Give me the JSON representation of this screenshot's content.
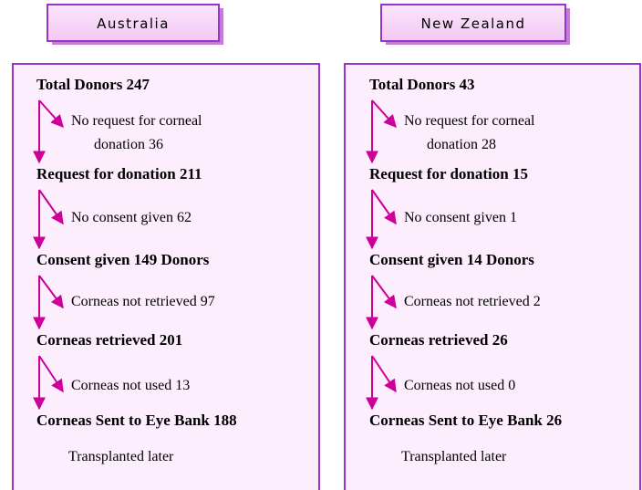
{
  "columns": [
    {
      "header": "Australia",
      "steps": [
        "Total Donors  247",
        "Request for donation  211",
        "Consent given  149 Donors",
        "Corneas retrieved  201",
        "Corneas Sent to Eye Bank  188"
      ],
      "notes": [
        [
          "No request for corneal",
          "donation  36"
        ],
        [
          "No consent given  62"
        ],
        [
          "Corneas not retrieved  97"
        ],
        [
          "Corneas not used  13"
        ]
      ],
      "footer": "Transplanted later"
    },
    {
      "header": "New Zealand",
      "steps": [
        "Total Donors  43",
        "Request for donation  15",
        "Consent given  14 Donors",
        "Corneas retrieved 26",
        "Corneas Sent to Eye Bank  26"
      ],
      "notes": [
        [
          "No request for corneal",
          "donation  28"
        ],
        [
          "No consent given  1"
        ],
        [
          "Corneas not retrieved  2"
        ],
        [
          "Corneas not used  0"
        ]
      ],
      "footer": "Transplanted later"
    }
  ]
}
